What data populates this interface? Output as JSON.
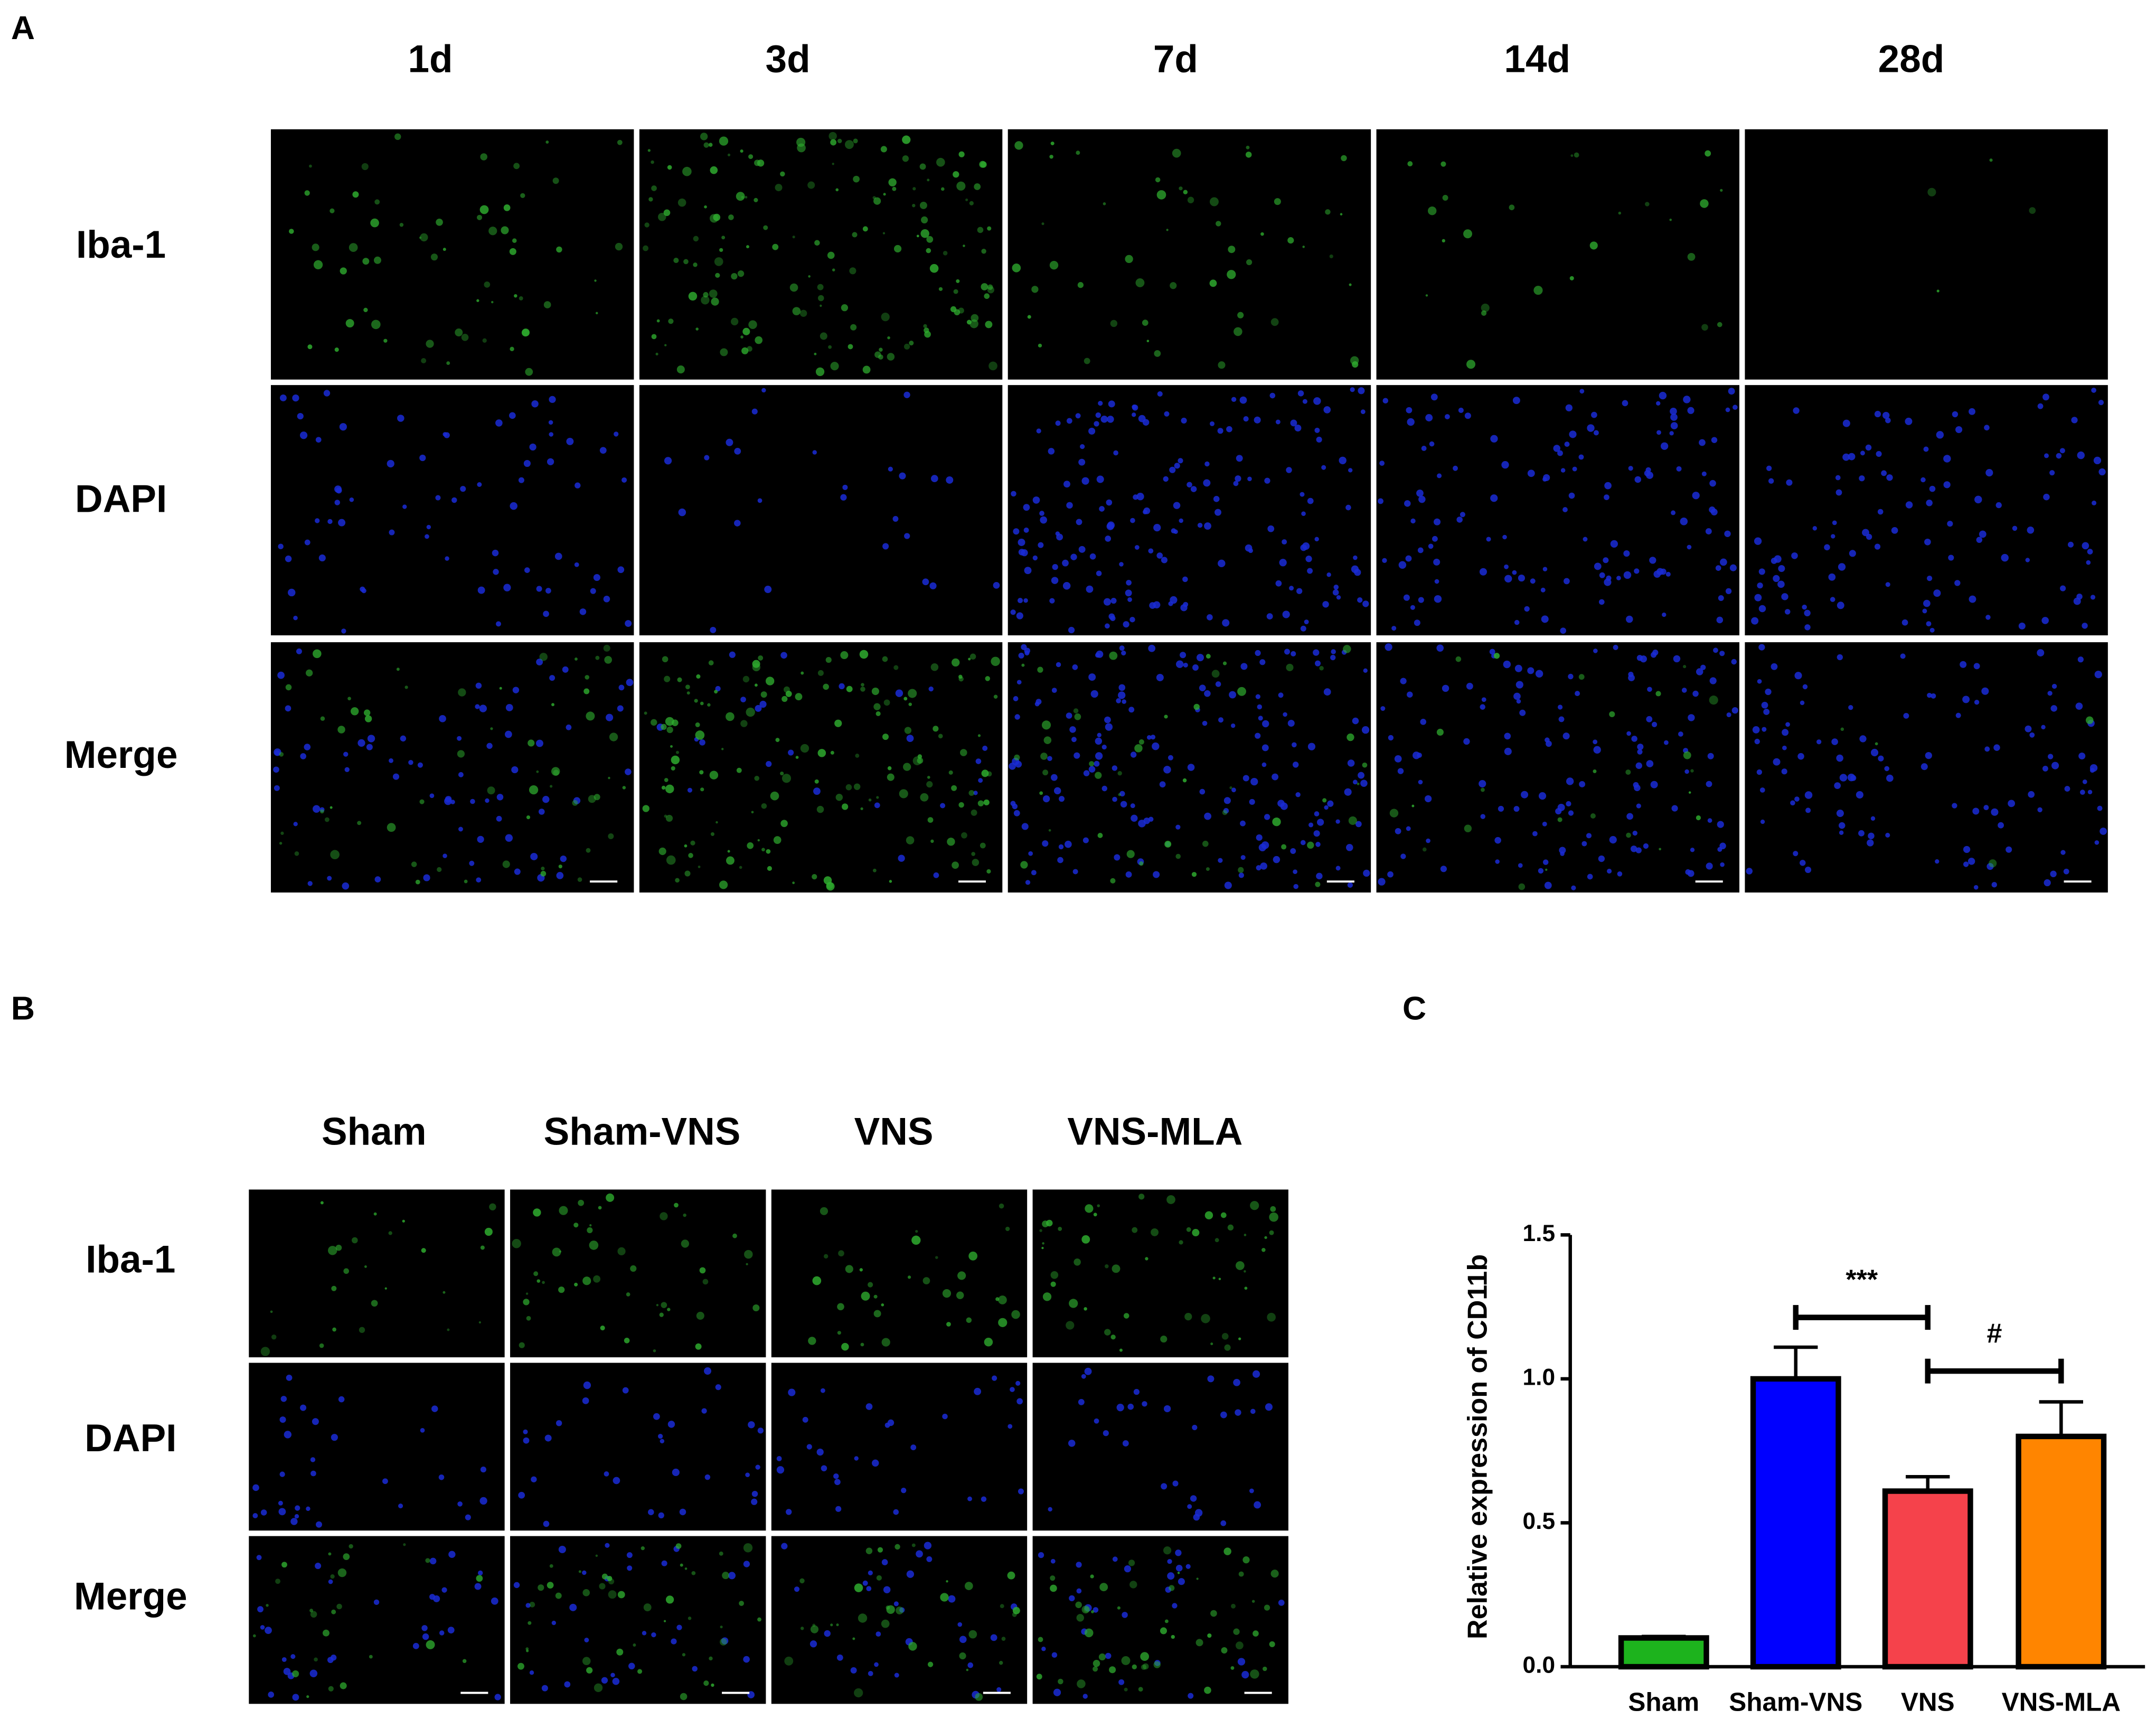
{
  "panel_a": {
    "label": "A",
    "columns": [
      "1d",
      "3d",
      "7d",
      "14d",
      "28d"
    ],
    "rows": [
      "Iba-1",
      "DAPI",
      "Merge"
    ]
  },
  "panel_b": {
    "label": "B",
    "columns": [
      "Sham",
      "Sham-VNS",
      "VNS",
      "VNS-MLA"
    ],
    "rows": [
      "Iba-1",
      "DAPI",
      "Merge"
    ]
  },
  "chart_data": {
    "type": "bar",
    "panel_label": "C",
    "y_label": "Relative expression of CD11b",
    "categories": [
      "Sham",
      "Sham-VNS",
      "VNS",
      "VNS-MLA"
    ],
    "values": [
      0.1,
      1.0,
      0.61,
      0.8
    ],
    "errors": [
      0.005,
      0.11,
      0.05,
      0.12
    ],
    "colors": [
      "#1db31d",
      "#0000ff",
      "#f5424b",
      "#ff8500"
    ],
    "ylim": [
      0,
      1.5
    ],
    "yticks": [
      {
        "value": 0,
        "label": "0.0"
      },
      {
        "value": 0.5,
        "label": "0.5"
      },
      {
        "value": 1,
        "label": "1.0"
      },
      {
        "value": 1.5,
        "label": "1.5"
      }
    ],
    "annotations": [
      {
        "text": "***"
      },
      {
        "text": "#"
      }
    ]
  }
}
